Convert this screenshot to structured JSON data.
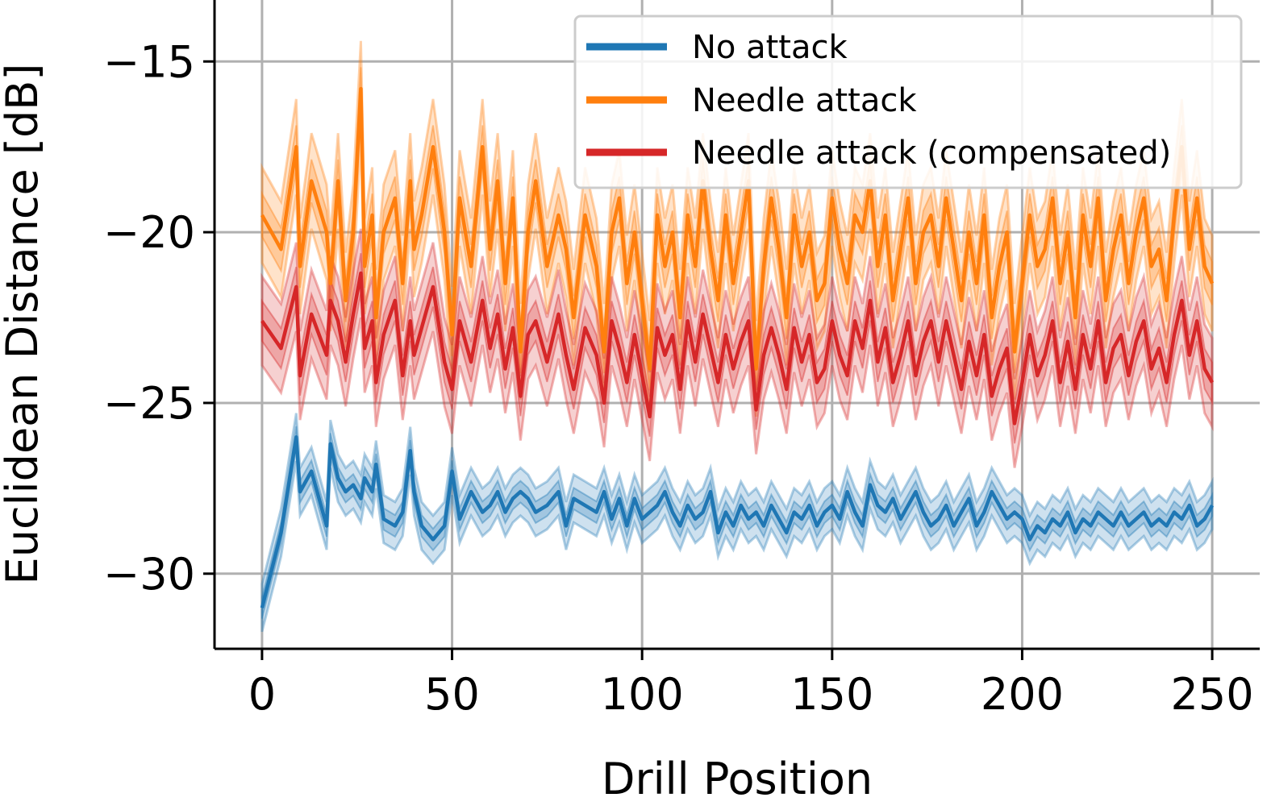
{
  "chart_data": {
    "type": "line",
    "title": "",
    "xlabel": "Drill Position",
    "ylabel": "Euclidean Distance [dB]",
    "xlim": [
      -12.5,
      262.5
    ],
    "ylim": [
      -32.2,
      -13.2
    ],
    "xticks": [
      0,
      50,
      100,
      150,
      200,
      250
    ],
    "yticks": [
      -30,
      -25,
      -20,
      -15
    ],
    "xtick_labels": [
      "0",
      "50",
      "100",
      "150",
      "200",
      "250"
    ],
    "ytick_labels": [
      "−30",
      "−25",
      "−20",
      "−15"
    ],
    "grid": true,
    "legend_position": "top-right",
    "colors": {
      "No attack": "#1f77b4",
      "Needle attack": "#ff7f0e",
      "Needle attack (compensated)": "#d62728"
    },
    "x": [
      0,
      5,
      9,
      10,
      13,
      17,
      18,
      20,
      22,
      24,
      26,
      27,
      29,
      30,
      32,
      35,
      37,
      39,
      40,
      42,
      45,
      48,
      50,
      52,
      55,
      58,
      60,
      62,
      64,
      66,
      68,
      70,
      72,
      75,
      78,
      80,
      82,
      85,
      88,
      90,
      92,
      94,
      96,
      98,
      100,
      102,
      104,
      106,
      108,
      110,
      112,
      114,
      116,
      118,
      120,
      122,
      124,
      126,
      128,
      130,
      132,
      134,
      136,
      138,
      140,
      142,
      144,
      146,
      148,
      150,
      152,
      154,
      156,
      158,
      160,
      162,
      164,
      166,
      168,
      170,
      172,
      174,
      176,
      178,
      180,
      182,
      184,
      186,
      188,
      190,
      192,
      194,
      196,
      198,
      200,
      202,
      204,
      206,
      208,
      210,
      212,
      214,
      216,
      218,
      220,
      222,
      224,
      226,
      228,
      230,
      232,
      234,
      236,
      238,
      240,
      242,
      244,
      246,
      248,
      250
    ],
    "series": [
      {
        "name": "No attack",
        "values": [
          -31.0,
          -28.8,
          -26.0,
          -27.6,
          -27.0,
          -28.6,
          -26.2,
          -27.2,
          -27.6,
          -27.4,
          -27.8,
          -27.2,
          -27.6,
          -26.8,
          -28.4,
          -28.6,
          -28.2,
          -26.4,
          -27.6,
          -28.6,
          -29.0,
          -28.6,
          -27.0,
          -28.4,
          -27.6,
          -28.2,
          -28.0,
          -27.6,
          -28.2,
          -27.8,
          -27.6,
          -27.8,
          -28.2,
          -28.0,
          -27.6,
          -28.6,
          -27.8,
          -28.0,
          -28.2,
          -27.6,
          -28.4,
          -27.8,
          -28.6,
          -27.8,
          -28.4,
          -28.2,
          -28.0,
          -27.6,
          -28.2,
          -28.6,
          -28.0,
          -28.4,
          -28.2,
          -27.6,
          -28.8,
          -28.2,
          -28.6,
          -28.0,
          -28.4,
          -28.2,
          -28.6,
          -28.0,
          -28.4,
          -28.8,
          -28.2,
          -28.4,
          -28.0,
          -28.6,
          -28.2,
          -28.0,
          -28.4,
          -27.6,
          -28.2,
          -28.6,
          -27.4,
          -28.0,
          -28.2,
          -27.8,
          -28.4,
          -28.0,
          -27.6,
          -28.2,
          -28.6,
          -28.4,
          -28.0,
          -28.6,
          -28.2,
          -27.8,
          -28.6,
          -28.2,
          -27.6,
          -28.0,
          -28.4,
          -28.2,
          -28.4,
          -29.0,
          -28.6,
          -28.8,
          -28.4,
          -28.6,
          -28.2,
          -28.8,
          -28.4,
          -28.6,
          -28.2,
          -28.4,
          -28.6,
          -28.2,
          -28.6,
          -28.4,
          -28.2,
          -28.6,
          -28.4,
          -28.6,
          -28.2,
          -28.4,
          -28.0,
          -28.6,
          -28.4,
          -28.0
        ],
        "band": 0.7
      },
      {
        "name": "Needle attack",
        "values": [
          -19.5,
          -20.5,
          -17.5,
          -21.0,
          -18.5,
          -20.0,
          -21.5,
          -18.5,
          -22.0,
          -20.0,
          -15.8,
          -21.0,
          -19.5,
          -22.5,
          -20.0,
          -19.0,
          -21.5,
          -18.5,
          -20.5,
          -19.5,
          -17.5,
          -20.0,
          -23.0,
          -19.0,
          -21.0,
          -17.5,
          -20.5,
          -18.5,
          -21.5,
          -19.0,
          -23.5,
          -20.0,
          -18.5,
          -21.0,
          -19.5,
          -20.5,
          -22.5,
          -19.5,
          -21.0,
          -23.5,
          -20.0,
          -19.0,
          -21.5,
          -20.0,
          -22.0,
          -24.0,
          -19.5,
          -21.0,
          -20.0,
          -22.5,
          -19.5,
          -21.0,
          -18.5,
          -20.5,
          -22.0,
          -19.5,
          -21.5,
          -20.0,
          -18.5,
          -24.0,
          -21.0,
          -19.0,
          -20.5,
          -22.5,
          -19.5,
          -21.0,
          -20.0,
          -22.0,
          -21.5,
          -19.0,
          -20.5,
          -21.5,
          -19.5,
          -20.0,
          -18.5,
          -21.0,
          -19.5,
          -22.0,
          -20.5,
          -19.0,
          -21.5,
          -20.0,
          -19.5,
          -21.0,
          -19.0,
          -20.5,
          -22.0,
          -20.0,
          -21.5,
          -19.5,
          -22.5,
          -21.0,
          -20.0,
          -23.5,
          -21.5,
          -19.5,
          -21.0,
          -20.5,
          -19.0,
          -21.5,
          -20.0,
          -22.5,
          -19.5,
          -21.0,
          -19.0,
          -22.0,
          -20.5,
          -19.5,
          -21.5,
          -20.0,
          -19.0,
          -21.0,
          -20.5,
          -22.0,
          -19.5,
          -17.5,
          -20.5,
          -19.0,
          -21.0,
          -21.5
        ],
        "band": 1.4
      },
      {
        "name": "Needle attack (compensated)",
        "values": [
          -22.6,
          -23.4,
          -21.6,
          -24.2,
          -22.4,
          -23.6,
          -22.0,
          -22.6,
          -23.8,
          -22.4,
          -21.2,
          -23.4,
          -22.6,
          -24.4,
          -23.0,
          -22.0,
          -24.2,
          -22.6,
          -23.6,
          -22.8,
          -21.6,
          -23.8,
          -24.6,
          -22.6,
          -23.8,
          -22.0,
          -23.4,
          -22.4,
          -24.0,
          -22.8,
          -24.8,
          -23.0,
          -22.6,
          -23.8,
          -22.4,
          -23.6,
          -24.6,
          -22.8,
          -23.6,
          -25.0,
          -22.6,
          -23.4,
          -24.4,
          -23.0,
          -24.2,
          -25.4,
          -22.8,
          -23.6,
          -23.0,
          -24.6,
          -22.6,
          -23.8,
          -22.4,
          -23.4,
          -24.4,
          -23.0,
          -24.0,
          -23.2,
          -22.6,
          -25.2,
          -23.6,
          -22.8,
          -23.6,
          -24.6,
          -22.8,
          -23.8,
          -23.0,
          -24.4,
          -24.0,
          -22.6,
          -23.6,
          -24.2,
          -22.6,
          -23.4,
          -22.0,
          -23.8,
          -22.8,
          -24.4,
          -23.6,
          -22.6,
          -24.2,
          -23.2,
          -22.6,
          -23.8,
          -22.6,
          -23.6,
          -24.6,
          -23.2,
          -24.2,
          -23.0,
          -24.8,
          -24.0,
          -23.4,
          -25.6,
          -24.4,
          -23.0,
          -24.2,
          -23.6,
          -22.6,
          -24.4,
          -23.2,
          -24.6,
          -23.0,
          -24.0,
          -22.6,
          -24.4,
          -23.4,
          -23.0,
          -24.2,
          -23.2,
          -22.6,
          -24.0,
          -23.4,
          -24.4,
          -23.0,
          -22.0,
          -23.6,
          -22.6,
          -24.0,
          -24.4
        ],
        "band": 1.3
      }
    ]
  }
}
